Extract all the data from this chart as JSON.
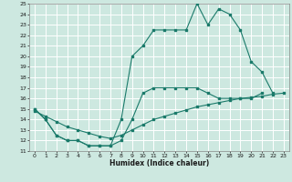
{
  "title": "",
  "xlabel": "Humidex (Indice chaleur)",
  "background_color": "#cde8e0",
  "grid_color": "#ffffff",
  "line_color": "#1a7a6a",
  "xlim": [
    -0.5,
    23.5
  ],
  "ylim": [
    11,
    25
  ],
  "xticks": [
    0,
    1,
    2,
    3,
    4,
    5,
    6,
    7,
    8,
    9,
    10,
    11,
    12,
    13,
    14,
    15,
    16,
    17,
    18,
    19,
    20,
    21,
    22,
    23
  ],
  "yticks": [
    11,
    12,
    13,
    14,
    15,
    16,
    17,
    18,
    19,
    20,
    21,
    22,
    23,
    24,
    25
  ],
  "hours": [
    0,
    1,
    2,
    3,
    4,
    5,
    6,
    7,
    8,
    9,
    10,
    11,
    12,
    13,
    14,
    15,
    16,
    17,
    18,
    19,
    20,
    21,
    22,
    23
  ],
  "max_curve": [
    15,
    14,
    12.5,
    12,
    12,
    11.5,
    11.5,
    11.5,
    14,
    20,
    21,
    22.5,
    22.5,
    22.5,
    22.5,
    25,
    23,
    24.5,
    24,
    22.5,
    19.5,
    18.5,
    16.5,
    null
  ],
  "mean_curve": [
    14.8,
    14.3,
    13.8,
    13.3,
    13.0,
    12.7,
    12.4,
    12.2,
    12.5,
    13.0,
    13.5,
    14.0,
    14.3,
    14.6,
    14.9,
    15.2,
    15.4,
    15.6,
    15.8,
    16.0,
    16.1,
    16.2,
    16.4,
    16.5
  ],
  "min_curve": [
    15,
    14,
    12.5,
    12,
    12,
    11.5,
    11.5,
    11.5,
    12,
    14,
    16.5,
    17,
    17,
    17,
    17,
    17,
    16.5,
    16,
    16,
    16,
    16,
    16.5,
    null,
    null
  ]
}
